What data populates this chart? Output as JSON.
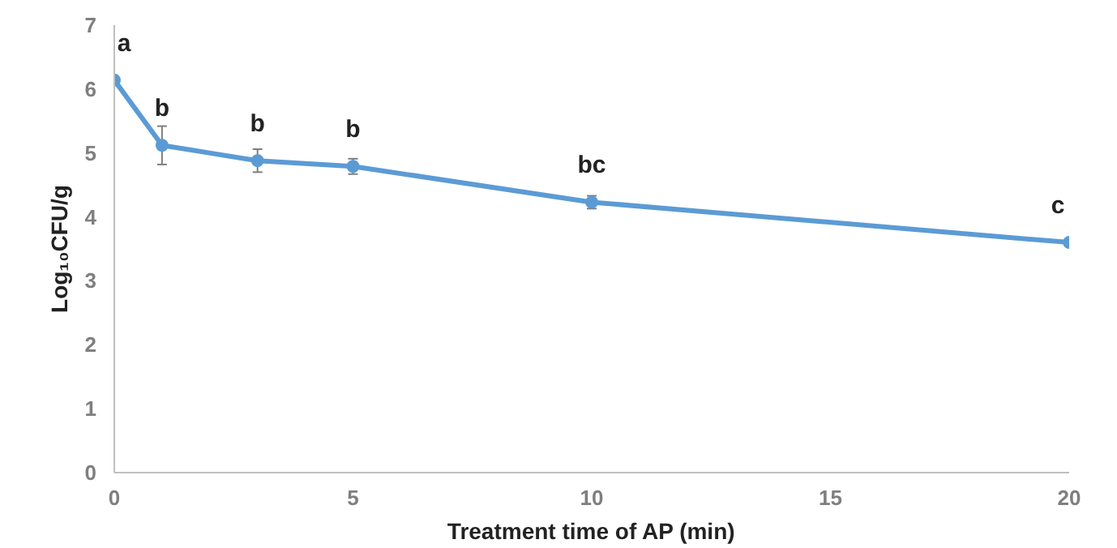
{
  "chart_data": {
    "type": "line",
    "xlabel": "Treatment time of AP (min)",
    "ylabel": "Log₁₀CFU/g",
    "x": [
      0,
      1,
      3,
      5,
      10,
      20
    ],
    "series": [
      {
        "color": "#5b9bd5",
        "values": [
          6.14,
          5.12,
          4.88,
          4.79,
          4.23,
          3.6
        ],
        "errors": [
          0.05,
          0.3,
          0.18,
          0.12,
          0.1,
          null
        ]
      }
    ],
    "xlim": [
      0,
      20
    ],
    "xticks": [
      0,
      5,
      10,
      15,
      20
    ],
    "ylim": [
      0,
      7
    ],
    "yticks": [
      0,
      1,
      2,
      3,
      4,
      5,
      6,
      7
    ],
    "grid": false,
    "marker": "circle",
    "line_style": "solid",
    "annotations": [
      {
        "text": "a",
        "x": 0,
        "y": 6.14
      },
      {
        "text": "b",
        "x": 1,
        "y": 5.12
      },
      {
        "text": "b",
        "x": 3,
        "y": 4.88
      },
      {
        "text": "b",
        "x": 5,
        "y": 4.79
      },
      {
        "text": "bc",
        "x": 10,
        "y": 4.23
      },
      {
        "text": "c",
        "x": 20,
        "y": 3.6
      }
    ]
  }
}
